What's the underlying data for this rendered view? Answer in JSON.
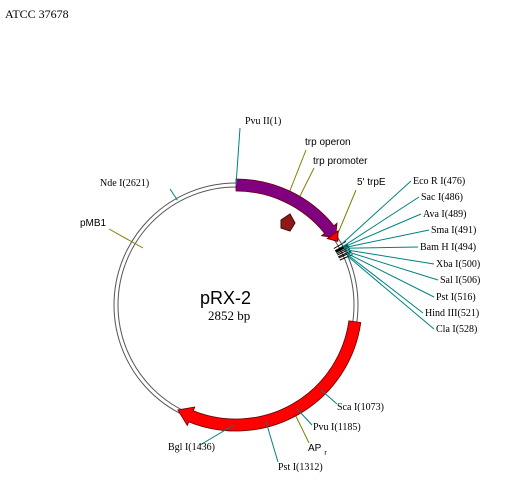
{
  "header": {
    "title": "ATCC 37678"
  },
  "plasmid": {
    "name": "pRX-2",
    "size": "2852 bp"
  },
  "sites": [
    "Pvu II(1)",
    "Eco R I(476)",
    "Sac I(486)",
    "Ava I(489)",
    "Sma I(491)",
    "Bam H I(494)",
    "Xba I(500)",
    "Sal I(506)",
    "Pst I(516)",
    "Hind III(521)",
    "Cla I(528)",
    "Sca I(1073)",
    "Pvu I(1185)",
    "Pst I(1312)",
    "Bgl I(1436)",
    "Nde I(2621)"
  ],
  "features": {
    "trp_operon": "trp operon",
    "trp_promoter": "trp promoter",
    "trpE": "5' trpE",
    "ap": "AP",
    "ap_sub": "r",
    "origin": "pMB1"
  }
}
